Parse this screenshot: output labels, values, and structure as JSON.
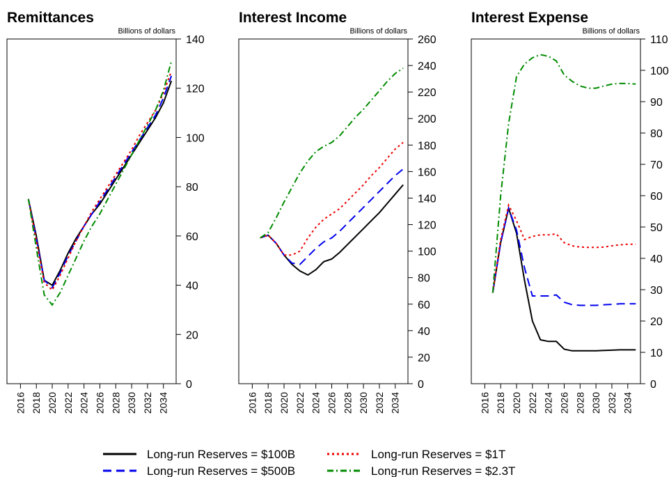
{
  "chart_data": [
    {
      "type": "line",
      "title": "Remittances",
      "ylabel": "Billions of dollars",
      "x": [
        2017,
        2018,
        2019,
        2020,
        2021,
        2022,
        2023,
        2024,
        2025,
        2026,
        2027,
        2028,
        2029,
        2030,
        2031,
        2032,
        2033,
        2034,
        2035
      ],
      "xlim": [
        2014.3,
        2035.6
      ],
      "xticks": [
        2016,
        2018,
        2020,
        2022,
        2024,
        2026,
        2028,
        2030,
        2032,
        2034
      ],
      "ylim": [
        0,
        140
      ],
      "yticks": [
        0,
        20,
        40,
        60,
        80,
        100,
        120,
        140
      ],
      "series": [
        {
          "name": "Long-run Reserves = $100B",
          "color": "#000000",
          "values": [
            75,
            60,
            42,
            40,
            46,
            53,
            59,
            64,
            69,
            73,
            78,
            83,
            88,
            93,
            98,
            103,
            108,
            114,
            123
          ]
        },
        {
          "name": "Long-run Reserves = $500B",
          "color": "#0000ee",
          "values": [
            75,
            59,
            42,
            39,
            45,
            52,
            58,
            64,
            69,
            74,
            79,
            84,
            89,
            94,
            99,
            104,
            109,
            116,
            125
          ]
        },
        {
          "name": "Long-run Reserves = $1T",
          "color": "#ee0000",
          "values": [
            75,
            58,
            41,
            38,
            44,
            51,
            58,
            64,
            70,
            75,
            80,
            85,
            90,
            95,
            101,
            106,
            111,
            118,
            127
          ]
        },
        {
          "name": "Long-run Reserves = $2.3T",
          "color": "#008b00",
          "values": [
            75,
            55,
            36,
            32,
            37,
            44,
            51,
            58,
            64,
            69,
            75,
            81,
            87,
            93,
            99,
            105,
            111,
            119,
            131
          ]
        }
      ]
    },
    {
      "type": "line",
      "title": "Interest Income",
      "ylabel": "Billions of dollars",
      "x": [
        2017,
        2018,
        2019,
        2020,
        2021,
        2022,
        2023,
        2024,
        2025,
        2026,
        2027,
        2028,
        2029,
        2030,
        2031,
        2032,
        2033,
        2034,
        2035
      ],
      "xlim": [
        2014.3,
        2035.6
      ],
      "xticks": [
        2016,
        2018,
        2020,
        2022,
        2024,
        2026,
        2028,
        2030,
        2032,
        2034
      ],
      "ylim": [
        0,
        260
      ],
      "yticks": [
        0,
        20,
        40,
        60,
        80,
        100,
        120,
        140,
        160,
        180,
        200,
        220,
        240,
        260
      ],
      "series": [
        {
          "values": [
            110,
            112,
            106,
            97,
            90,
            85,
            82,
            86,
            92,
            94,
            99,
            105,
            111,
            117,
            123,
            129,
            136,
            143,
            150
          ]
        },
        {
          "values": [
            110,
            112,
            106,
            97,
            91,
            90,
            96,
            102,
            107,
            110,
            115,
            121,
            127,
            133,
            139,
            145,
            151,
            157,
            162
          ]
        },
        {
          "values": [
            110,
            112,
            106,
            97,
            97,
            100,
            110,
            118,
            124,
            128,
            132,
            138,
            144,
            150,
            157,
            163,
            170,
            177,
            182
          ]
        },
        {
          "values": [
            110,
            114,
            125,
            137,
            148,
            159,
            168,
            175,
            179,
            182,
            187,
            194,
            201,
            207,
            214,
            221,
            228,
            234,
            238
          ]
        }
      ]
    },
    {
      "type": "line",
      "title": "Interest Expense",
      "ylabel": "Billions of dollars",
      "x": [
        2017,
        2018,
        2019,
        2020,
        2021,
        2022,
        2023,
        2024,
        2025,
        2026,
        2027,
        2028,
        2029,
        2030,
        2031,
        2032,
        2033,
        2034,
        2035
      ],
      "xlim": [
        2014.3,
        2035.6
      ],
      "xticks": [
        2016,
        2018,
        2020,
        2022,
        2024,
        2026,
        2028,
        2030,
        2032,
        2034
      ],
      "ylim": [
        0,
        110
      ],
      "yticks": [
        0,
        10,
        20,
        30,
        40,
        50,
        60,
        70,
        80,
        90,
        100,
        110
      ],
      "series": [
        {
          "values": [
            29,
            45,
            56,
            48,
            33,
            20,
            14,
            13.5,
            13.5,
            11,
            10.5,
            10.5,
            10.5,
            10.5,
            10.6,
            10.7,
            10.8,
            10.8,
            10.8
          ]
        },
        {
          "values": [
            29,
            45,
            56,
            49,
            37,
            28,
            28,
            28,
            28.3,
            26,
            25.2,
            25,
            25,
            25,
            25.2,
            25.3,
            25.5,
            25.5,
            25.5
          ]
        },
        {
          "values": [
            29,
            46,
            57,
            52,
            46,
            47,
            47.5,
            47.5,
            47.8,
            45,
            44,
            43.6,
            43.5,
            43.5,
            43.6,
            44,
            44.3,
            44.5,
            44.5
          ]
        },
        {
          "values": [
            29,
            60,
            83,
            98,
            102,
            104,
            105,
            104.5,
            103,
            98.5,
            96.5,
            95,
            94.3,
            94.3,
            95,
            95.6,
            95.8,
            95.8,
            95.6
          ]
        }
      ]
    }
  ]
}
